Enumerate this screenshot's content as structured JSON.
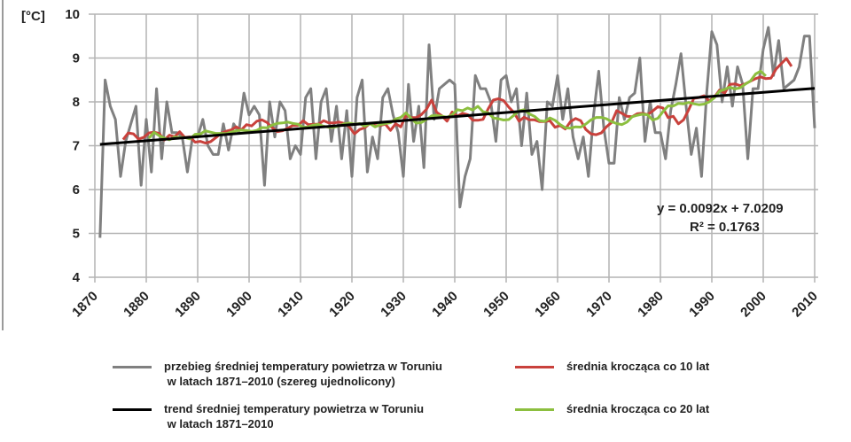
{
  "chart_data": {
    "type": "line",
    "ylabel": "[°C]",
    "xlim": [
      1870,
      2010
    ],
    "ylim": [
      4,
      10
    ],
    "x_ticks": [
      "1870",
      "1880",
      "1890",
      "1900",
      "1910",
      "1920",
      "1930",
      "1940",
      "1950",
      "1960",
      "1970",
      "1980",
      "1990",
      "2000",
      "2010"
    ],
    "y_ticks": [
      "4",
      "5",
      "6",
      "7",
      "8",
      "9",
      "10"
    ],
    "grid": true,
    "legend_position": "bottom",
    "years_start": 1871,
    "annual": {
      "name": "przebieg średniej temperatury powietrza w Toruniu\n w latach 1871–2010 (szereg ujednolicony)",
      "color": "#808080",
      "values": [
        4.9,
        8.5,
        7.9,
        7.6,
        6.3,
        7.1,
        7.5,
        7.9,
        6.1,
        7.6,
        6.4,
        8.3,
        6.7,
        8.0,
        7.3,
        7.3,
        7.2,
        6.4,
        7.2,
        7.2,
        7.6,
        7.0,
        6.8,
        6.8,
        7.5,
        6.9,
        7.5,
        7.3,
        8.2,
        7.7,
        7.9,
        7.7,
        6.1,
        8.0,
        7.2,
        8.0,
        7.8,
        6.7,
        7.0,
        6.8,
        8.1,
        8.3,
        6.7,
        8.0,
        8.3,
        7.1,
        7.9,
        6.7,
        7.8,
        6.3,
        8.1,
        8.5,
        6.4,
        7.2,
        6.7,
        8.1,
        8.3,
        7.7,
        7.3,
        6.3,
        8.4,
        7.1,
        7.9,
        6.5,
        9.3,
        7.6,
        8.3,
        8.4,
        8.5,
        8.4,
        5.6,
        6.3,
        6.7,
        8.6,
        8.3,
        8.3,
        8.0,
        7.1,
        8.5,
        8.6,
        8.0,
        8.3,
        7.0,
        8.2,
        6.8,
        7.1,
        6.0,
        8.0,
        7.9,
        8.6,
        7.6,
        8.3,
        7.2,
        6.7,
        7.2,
        6.3,
        7.7,
        8.7,
        7.4,
        6.6,
        6.6,
        8.1,
        7.6,
        8.1,
        8.2,
        9.0,
        7.1,
        8.0,
        7.3,
        7.3,
        6.7,
        7.8,
        8.4,
        9.1,
        7.9,
        6.8,
        7.4,
        6.3,
        8.2,
        9.6,
        9.3,
        8.0,
        8.8,
        7.9,
        8.8,
        8.4,
        6.7,
        8.3,
        8.3,
        9.2,
        9.7,
        8.6,
        9.4,
        8.3,
        8.4,
        8.5,
        8.8,
        9.5,
        9.5,
        7.4
      ]
    },
    "moving_average_10": {
      "name": "średnia krocząca co 10 lat",
      "window": 10,
      "color": "#c9413c"
    },
    "moving_average_20": {
      "name": "średnia krocząca co 20 lat",
      "window": 20,
      "color": "#8cbf3f"
    },
    "trend": {
      "name": "trend średniej temperatury powietrza w Toruniu\n w latach 1871–2010",
      "color": "#000000",
      "slope": 0.0092,
      "intercept": 7.0209,
      "equation": "y = 0.0092x + 7.0209",
      "r_squared": "R² = 0.1763"
    }
  }
}
